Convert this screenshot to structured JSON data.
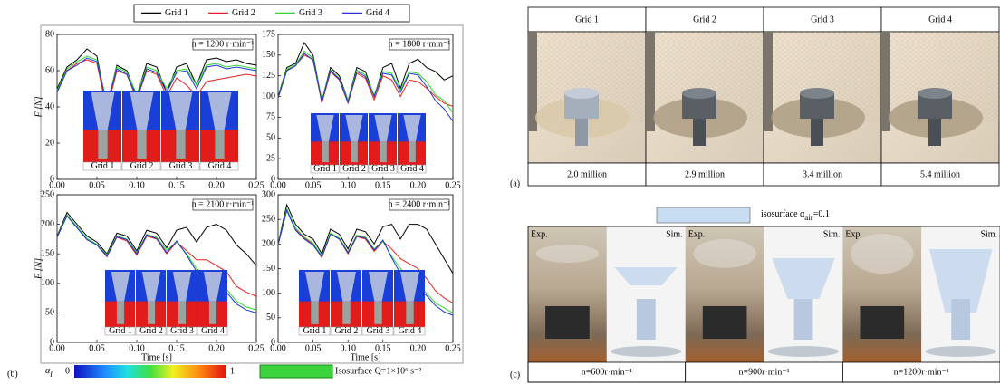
{
  "chart_data": [
    {
      "type": "line",
      "annotation": "n = 1200 r·min⁻¹",
      "ylabel": "F [N]",
      "x": [
        0,
        0.0125,
        0.025,
        0.0375,
        0.05,
        0.0625,
        0.075,
        0.0875,
        0.1,
        0.1125,
        0.125,
        0.1375,
        0.15,
        0.1625,
        0.175,
        0.1875,
        0.2,
        0.2125,
        0.225,
        0.2375,
        0.25
      ],
      "xlim": [
        0,
        0.25
      ],
      "xticks": [
        {
          "value": 0,
          "label": "0.00"
        },
        {
          "value": 0.05,
          "label": "0.05"
        },
        {
          "value": 0.1,
          "label": "0.10"
        },
        {
          "value": 0.15,
          "label": "0.15"
        },
        {
          "value": 0.2,
          "label": "0.20"
        },
        {
          "value": 0.25,
          "label": "0.25"
        }
      ],
      "ylim": [
        0,
        80
      ],
      "yticks": [
        0,
        20,
        40,
        60,
        80
      ],
      "series": [
        {
          "name": "Grid 1",
          "color": "#000000",
          "values": [
            50,
            62,
            66,
            72,
            68,
            40,
            63,
            60,
            46,
            64,
            62,
            48,
            62,
            64,
            52,
            66,
            67,
            65,
            66,
            64,
            63
          ]
        },
        {
          "name": "Grid 2",
          "color": "#e8211f",
          "values": [
            48,
            60,
            64,
            66,
            64,
            38,
            60,
            58,
            44,
            60,
            58,
            46,
            56,
            52,
            46,
            54,
            55,
            56,
            57,
            58,
            57
          ]
        },
        {
          "name": "Grid 3",
          "color": "#2bd92b",
          "values": [
            49,
            61,
            65,
            68,
            66,
            42,
            62,
            59,
            47,
            62,
            60,
            50,
            60,
            61,
            52,
            63,
            64,
            62,
            63,
            62,
            61
          ]
        },
        {
          "name": "Grid 4",
          "color": "#2233d6",
          "values": [
            48,
            60,
            63,
            67,
            65,
            41,
            61,
            58,
            45,
            61,
            59,
            48,
            59,
            60,
            50,
            62,
            63,
            61,
            62,
            61,
            60
          ]
        }
      ]
    },
    {
      "type": "line",
      "annotation": "n = 1800 r·min⁻¹",
      "x": [
        0,
        0.0125,
        0.025,
        0.0375,
        0.05,
        0.0625,
        0.075,
        0.0875,
        0.1,
        0.1125,
        0.125,
        0.1375,
        0.15,
        0.1625,
        0.175,
        0.1875,
        0.2,
        0.2125,
        0.225,
        0.2375,
        0.25
      ],
      "xlim": [
        0,
        0.25
      ],
      "xticks": [
        {
          "value": 0,
          "label": "0.00"
        },
        {
          "value": 0.05,
          "label": "0.05"
        },
        {
          "value": 0.1,
          "label": "0.10"
        },
        {
          "value": 0.15,
          "label": "0.15"
        },
        {
          "value": 0.2,
          "label": "0.20"
        },
        {
          "value": 0.25,
          "label": "0.25"
        }
      ],
      "ylim": [
        0,
        175
      ],
      "yticks": [
        0,
        25,
        50,
        75,
        100,
        125,
        150,
        175
      ],
      "series": [
        {
          "color": "#000000",
          "values": [
            100,
            135,
            140,
            165,
            150,
            95,
            135,
            125,
            95,
            135,
            130,
            100,
            135,
            140,
            110,
            140,
            145,
            135,
            130,
            120,
            125
          ]
        },
        {
          "color": "#e8211f",
          "values": [
            98,
            132,
            138,
            150,
            145,
            92,
            130,
            120,
            92,
            128,
            122,
            96,
            125,
            120,
            100,
            120,
            118,
            110,
            100,
            92,
            88
          ]
        },
        {
          "color": "#2bd92b",
          "values": [
            99,
            133,
            138,
            155,
            146,
            96,
            132,
            122,
            95,
            132,
            126,
            102,
            130,
            128,
            108,
            130,
            128,
            118,
            102,
            95,
            80
          ]
        },
        {
          "color": "#2233d6",
          "values": [
            98,
            131,
            137,
            152,
            144,
            94,
            131,
            121,
            93,
            130,
            124,
            100,
            128,
            126,
            105,
            128,
            126,
            112,
            95,
            85,
            70
          ]
        }
      ]
    },
    {
      "type": "line",
      "annotation": "n = 2100 r·min⁻¹",
      "ylabel": "F [N]",
      "xlabel": "Time [s]",
      "x": [
        0,
        0.0125,
        0.025,
        0.0375,
        0.05,
        0.0625,
        0.075,
        0.0875,
        0.1,
        0.1125,
        0.125,
        0.1375,
        0.15,
        0.1625,
        0.175,
        0.1875,
        0.2,
        0.2125,
        0.225,
        0.2375,
        0.25
      ],
      "xlim": [
        0,
        0.25
      ],
      "xticks": [
        {
          "value": 0,
          "label": "0.00"
        },
        {
          "value": 0.05,
          "label": "0.05"
        },
        {
          "value": 0.1,
          "label": "0.10"
        },
        {
          "value": 0.15,
          "label": "0.15"
        },
        {
          "value": 0.2,
          "label": "0.20"
        },
        {
          "value": 0.25,
          "label": "0.25"
        }
      ],
      "ylim": [
        0,
        250
      ],
      "yticks": [
        0,
        50,
        100,
        150,
        200,
        250
      ],
      "series": [
        {
          "color": "#000000",
          "values": [
            180,
            220,
            200,
            180,
            170,
            150,
            185,
            180,
            155,
            190,
            185,
            160,
            190,
            195,
            170,
            195,
            200,
            190,
            165,
            150,
            130
          ]
        },
        {
          "color": "#e8211f",
          "values": [
            178,
            215,
            195,
            175,
            165,
            145,
            178,
            172,
            148,
            180,
            175,
            150,
            170,
            155,
            140,
            140,
            130,
            120,
            95,
            85,
            78
          ]
        },
        {
          "color": "#2bd92b",
          "values": [
            179,
            216,
            196,
            176,
            166,
            148,
            180,
            175,
            152,
            183,
            178,
            156,
            170,
            150,
            125,
            115,
            100,
            90,
            70,
            60,
            55
          ]
        },
        {
          "color": "#2233d6",
          "values": [
            178,
            214,
            194,
            174,
            165,
            146,
            179,
            174,
            150,
            182,
            176,
            152,
            172,
            148,
            120,
            110,
            95,
            85,
            65,
            55,
            50
          ]
        }
      ]
    },
    {
      "type": "line",
      "annotation": "n = 2400 r·min⁻¹",
      "xlabel": "Time [s]",
      "x": [
        0,
        0.0125,
        0.025,
        0.0375,
        0.05,
        0.0625,
        0.075,
        0.0875,
        0.1,
        0.1125,
        0.125,
        0.1375,
        0.15,
        0.1625,
        0.175,
        0.1875,
        0.2,
        0.2125,
        0.225,
        0.2375,
        0.25
      ],
      "xlim": [
        0,
        0.25
      ],
      "xticks": [
        {
          "value": 0,
          "label": "0.00"
        },
        {
          "value": 0.05,
          "label": "0.05"
        },
        {
          "value": 0.1,
          "label": "0.10"
        },
        {
          "value": 0.15,
          "label": "0.15"
        },
        {
          "value": 0.2,
          "label": "0.20"
        },
        {
          "value": 0.25,
          "label": "0.25"
        }
      ],
      "ylim": [
        0,
        300
      ],
      "yticks": [
        0,
        50,
        100,
        150,
        200,
        250,
        300
      ],
      "series": [
        {
          "color": "#000000",
          "values": [
            200,
            280,
            240,
            220,
            210,
            180,
            230,
            220,
            190,
            230,
            225,
            200,
            235,
            240,
            210,
            240,
            240,
            230,
            200,
            170,
            140
          ]
        },
        {
          "color": "#e8211f",
          "values": [
            198,
            270,
            230,
            212,
            200,
            172,
            220,
            210,
            180,
            215,
            210,
            185,
            205,
            190,
            170,
            160,
            150,
            130,
            105,
            90,
            80
          ]
        },
        {
          "color": "#2bd92b",
          "values": [
            199,
            272,
            232,
            214,
            202,
            176,
            222,
            212,
            184,
            218,
            214,
            190,
            205,
            175,
            150,
            130,
            115,
            100,
            80,
            70,
            60
          ]
        },
        {
          "color": "#2233d6",
          "values": [
            198,
            268,
            228,
            210,
            198,
            174,
            220,
            210,
            182,
            216,
            212,
            188,
            208,
            172,
            140,
            125,
            110,
            95,
            75,
            62,
            55
          ]
        }
      ]
    }
  ],
  "panel_b": {
    "label": "(b)",
    "inset_labels": [
      "Grid 1",
      "Grid 2",
      "Grid 3",
      "Grid 4"
    ],
    "colorbar_symbol": "α",
    "colorbar_subscript": "l",
    "colorbar_min": 0,
    "colorbar_max": 1,
    "isosurface_label": "Isosurface Q=1×10⁶ s⁻²"
  },
  "panel_a": {
    "label": "(a)",
    "columns": [
      {
        "header": "Grid 1",
        "cells": "2.0 million"
      },
      {
        "header": "Grid 2",
        "cells": "2.9 million"
      },
      {
        "header": "Grid 3",
        "cells": "3.4 million"
      },
      {
        "header": "Grid 4",
        "cells": "5.4 million"
      }
    ]
  },
  "panel_c": {
    "label": "(c)",
    "legend_prefix": "isosurface α",
    "legend_subscript": "air",
    "legend_suffix": "=0.1",
    "columns": [
      {
        "left": "Exp.",
        "right": "Sim.",
        "caption": "n=600r·min⁻¹"
      },
      {
        "left": "Exp.",
        "right": "Sim.",
        "caption": "n=900r·min⁻¹"
      },
      {
        "left": "Exp.",
        "right": "Sim.",
        "caption": "n=1200r·min⁻¹"
      }
    ]
  }
}
